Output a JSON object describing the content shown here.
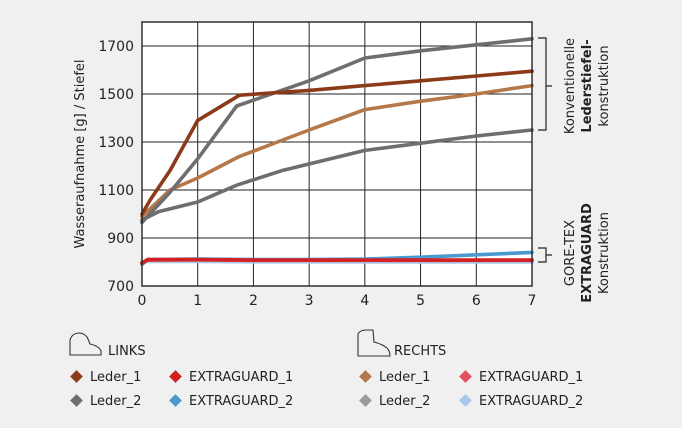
{
  "chart_data": {
    "type": "line",
    "ylabel": "Wasseraufnahme [g] / Stiefel",
    "xlabel": "",
    "xlim": [
      0,
      7
    ],
    "ylim": [
      700,
      1800
    ],
    "x_ticks": [
      "0",
      "1",
      "2",
      "3",
      "4",
      "5",
      "6",
      "7"
    ],
    "y_ticks": [
      "700",
      "900",
      "1100",
      "1300",
      "1500",
      "1700"
    ],
    "grid": true,
    "series": [
      {
        "id": "links_leder_2",
        "name": "Leder_2",
        "group": "LINKS",
        "color": "#6e6e6e",
        "points": [
          [
            0,
            975
          ],
          [
            0.3,
            1010
          ],
          [
            1,
            1050
          ],
          [
            1.7,
            1120
          ],
          [
            2.5,
            1180
          ],
          [
            4,
            1265
          ],
          [
            5,
            1295
          ],
          [
            6,
            1325
          ],
          [
            7,
            1350
          ]
        ]
      },
      {
        "id": "rechts_leder_1",
        "name": "Leder_1",
        "group": "RECHTS",
        "color": "#b5784a",
        "points": [
          [
            0,
            990
          ],
          [
            0.5,
            1100
          ],
          [
            1,
            1150
          ],
          [
            1.75,
            1240
          ],
          [
            3,
            1350
          ],
          [
            4,
            1435
          ],
          [
            5,
            1470
          ],
          [
            6,
            1500
          ],
          [
            7,
            1535
          ]
        ]
      },
      {
        "id": "rechts_leder_2",
        "name": "Leder_2",
        "group": "RECHTS",
        "color": "#6e6e6e",
        "points": [
          [
            0,
            965
          ],
          [
            0.5,
            1090
          ],
          [
            1,
            1230
          ],
          [
            1.7,
            1450
          ],
          [
            3,
            1555
          ],
          [
            4,
            1650
          ],
          [
            5,
            1680
          ],
          [
            6,
            1705
          ],
          [
            7,
            1730
          ]
        ]
      },
      {
        "id": "links_leder_1",
        "name": "Leder_1",
        "group": "LINKS",
        "color": "#8b3a1a",
        "points": [
          [
            0,
            1000
          ],
          [
            0.15,
            1060
          ],
          [
            0.5,
            1180
          ],
          [
            1,
            1390
          ],
          [
            1.75,
            1495
          ],
          [
            3,
            1515
          ],
          [
            4,
            1535
          ],
          [
            5,
            1555
          ],
          [
            6,
            1575
          ],
          [
            7,
            1595
          ]
        ]
      },
      {
        "id": "rechts_extraguard_2",
        "name": "EXTRAGUARD_2",
        "group": "RECHTS",
        "color": "#a8c8e8",
        "points": [
          [
            0,
            800
          ],
          [
            0.1,
            802
          ],
          [
            1,
            802
          ],
          [
            2,
            801
          ],
          [
            3,
            801
          ],
          [
            4,
            800
          ],
          [
            5,
            800
          ],
          [
            6,
            800
          ],
          [
            7,
            800
          ]
        ]
      },
      {
        "id": "links_extraguard_2",
        "name": "EXTRAGUARD_2",
        "group": "LINKS",
        "color": "#4a9ad0",
        "points": [
          [
            0,
            790
          ],
          [
            0.1,
            810
          ],
          [
            1,
            812
          ],
          [
            2,
            810
          ],
          [
            3,
            810
          ],
          [
            4,
            812
          ],
          [
            5,
            820
          ],
          [
            6,
            830
          ],
          [
            7,
            840
          ]
        ]
      },
      {
        "id": "rechts_extraguard_1",
        "name": "EXTRAGUARD_1",
        "group": "RECHTS",
        "color": "#e05060",
        "points": [
          [
            0,
            798
          ],
          [
            0.1,
            808
          ],
          [
            1,
            809
          ],
          [
            2,
            807
          ],
          [
            3,
            807
          ],
          [
            4,
            807
          ],
          [
            5,
            807
          ],
          [
            6,
            807
          ],
          [
            7,
            807
          ]
        ]
      },
      {
        "id": "links_extraguard_1",
        "name": "EXTRAGUARD_1",
        "group": "LINKS",
        "color": "#d42020",
        "points": [
          [
            0,
            795
          ],
          [
            0.1,
            810
          ],
          [
            1,
            810
          ],
          [
            2,
            808
          ],
          [
            3,
            808
          ],
          [
            4,
            808
          ],
          [
            5,
            808
          ],
          [
            6,
            808
          ],
          [
            7,
            808
          ]
        ]
      }
    ],
    "annotations": {
      "upper": [
        "Konventionelle",
        "Lederstiefel-",
        "konstruktion"
      ],
      "lower": [
        "GORE-TEX",
        "EXTRAGUARD",
        "Konstruktion"
      ]
    },
    "legend": {
      "placement": "bottom",
      "groups": [
        {
          "title": "LINKS",
          "icon": "low-boot-icon",
          "items": [
            {
              "label": "Leder_1",
              "color": "#8b3a1a"
            },
            {
              "label": "EXTRAGUARD_1",
              "color": "#d42020"
            },
            {
              "label": "Leder_2",
              "color": "#6e6e6e"
            },
            {
              "label": "EXTRAGUARD_2",
              "color": "#4a9ad0"
            }
          ]
        },
        {
          "title": "RECHTS",
          "icon": "high-boot-icon",
          "items": [
            {
              "label": "Leder_1",
              "color": "#b5784a"
            },
            {
              "label": "EXTRAGUARD_1",
              "color": "#e05060"
            },
            {
              "label": "Leder_2",
              "color": "#9a9a9a"
            },
            {
              "label": "EXTRAGUARD_2",
              "color": "#a8c8e8"
            }
          ]
        }
      ]
    }
  }
}
